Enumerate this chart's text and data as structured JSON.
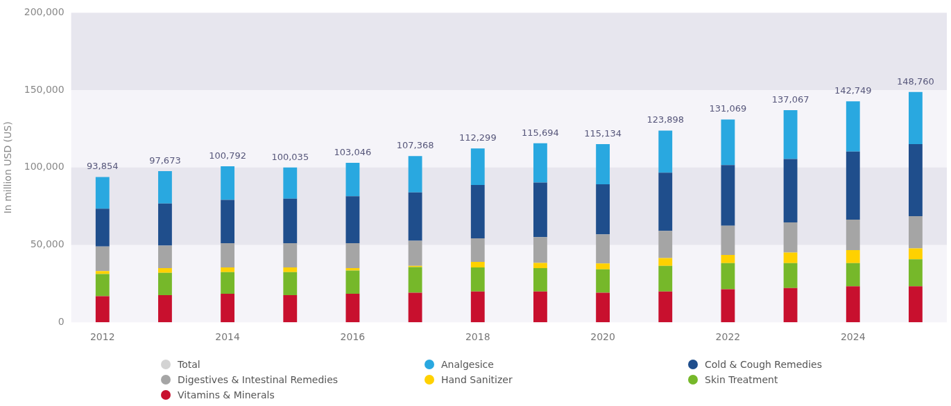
{
  "chart_data": {
    "type": "bar",
    "stacked": true,
    "ylabel": "In million USD (US)",
    "categories": [
      "2012",
      null,
      "2014",
      null,
      "2016",
      null,
      "2018",
      null,
      "2020",
      null,
      "2022",
      null,
      "2024",
      null
    ],
    "ylim": [
      0,
      200000
    ],
    "yticks": [
      {
        "value": 0,
        "label": "0"
      },
      {
        "value": 50000,
        "label": "50,000"
      },
      {
        "value": 100000,
        "label": "100,000"
      },
      {
        "value": 150000,
        "label": "150,000"
      },
      {
        "value": 200000,
        "label": "200,000"
      }
    ],
    "grid": false,
    "legend": "bottom",
    "bands": [
      {
        "axis": "y",
        "from": 50000,
        "to": 100000,
        "color": "#e7e6ee"
      },
      {
        "axis": "y",
        "from": 150000,
        "to": 200000,
        "color": "#e7e6ee"
      }
    ],
    "series": [
      {
        "name": "Vitamins & Minerals",
        "color": "#c8102e",
        "values": [
          16900,
          17600,
          18400,
          17600,
          18400,
          19100,
          19900,
          19900,
          19100,
          19900,
          21400,
          22100,
          23200,
          23200
        ]
      },
      {
        "name": "Skin Treatment",
        "color": "#76b82a",
        "values": [
          14300,
          14400,
          14000,
          14800,
          15000,
          16600,
          15500,
          15100,
          15100,
          16600,
          16900,
          16200,
          15100,
          17500
        ]
      },
      {
        "name": "Hand Sanitizer",
        "color": "#ffd100",
        "values": [
          1900,
          3000,
          3000,
          3000,
          1600,
          800,
          3600,
          3400,
          3800,
          5000,
          5200,
          6800,
          8300,
          7100
        ]
      },
      {
        "name": "Digestives & Intestinal Remedies",
        "color": "#a5a5a5",
        "values": [
          15900,
          14600,
          15700,
          15700,
          16100,
          16200,
          15200,
          16600,
          18800,
          17600,
          18900,
          19500,
          19700,
          20800
        ]
      },
      {
        "name": "Cold & Cough Remedies",
        "color": "#1f4e8c",
        "values": [
          24400,
          27100,
          28000,
          28800,
          30300,
          31200,
          34500,
          35300,
          32400,
          37600,
          39200,
          40900,
          44000,
          46500
        ]
      },
      {
        "name": "Analgesice",
        "color": "#29a8e0",
        "values": [
          20454,
          20973,
          21692,
          20135,
          21646,
          23468,
          23599,
          25394,
          25934,
          27198,
          29469,
          31567,
          32449,
          33660
        ]
      }
    ],
    "totals": [
      "93,854",
      "97,673",
      "100,792",
      "100,035",
      "103,046",
      "107,368",
      "112,299",
      "115,694",
      "115,134",
      "123,898",
      "131,069",
      "137,067",
      "142,749",
      "148,760"
    ],
    "annotations": [
      "Total"
    ]
  }
}
